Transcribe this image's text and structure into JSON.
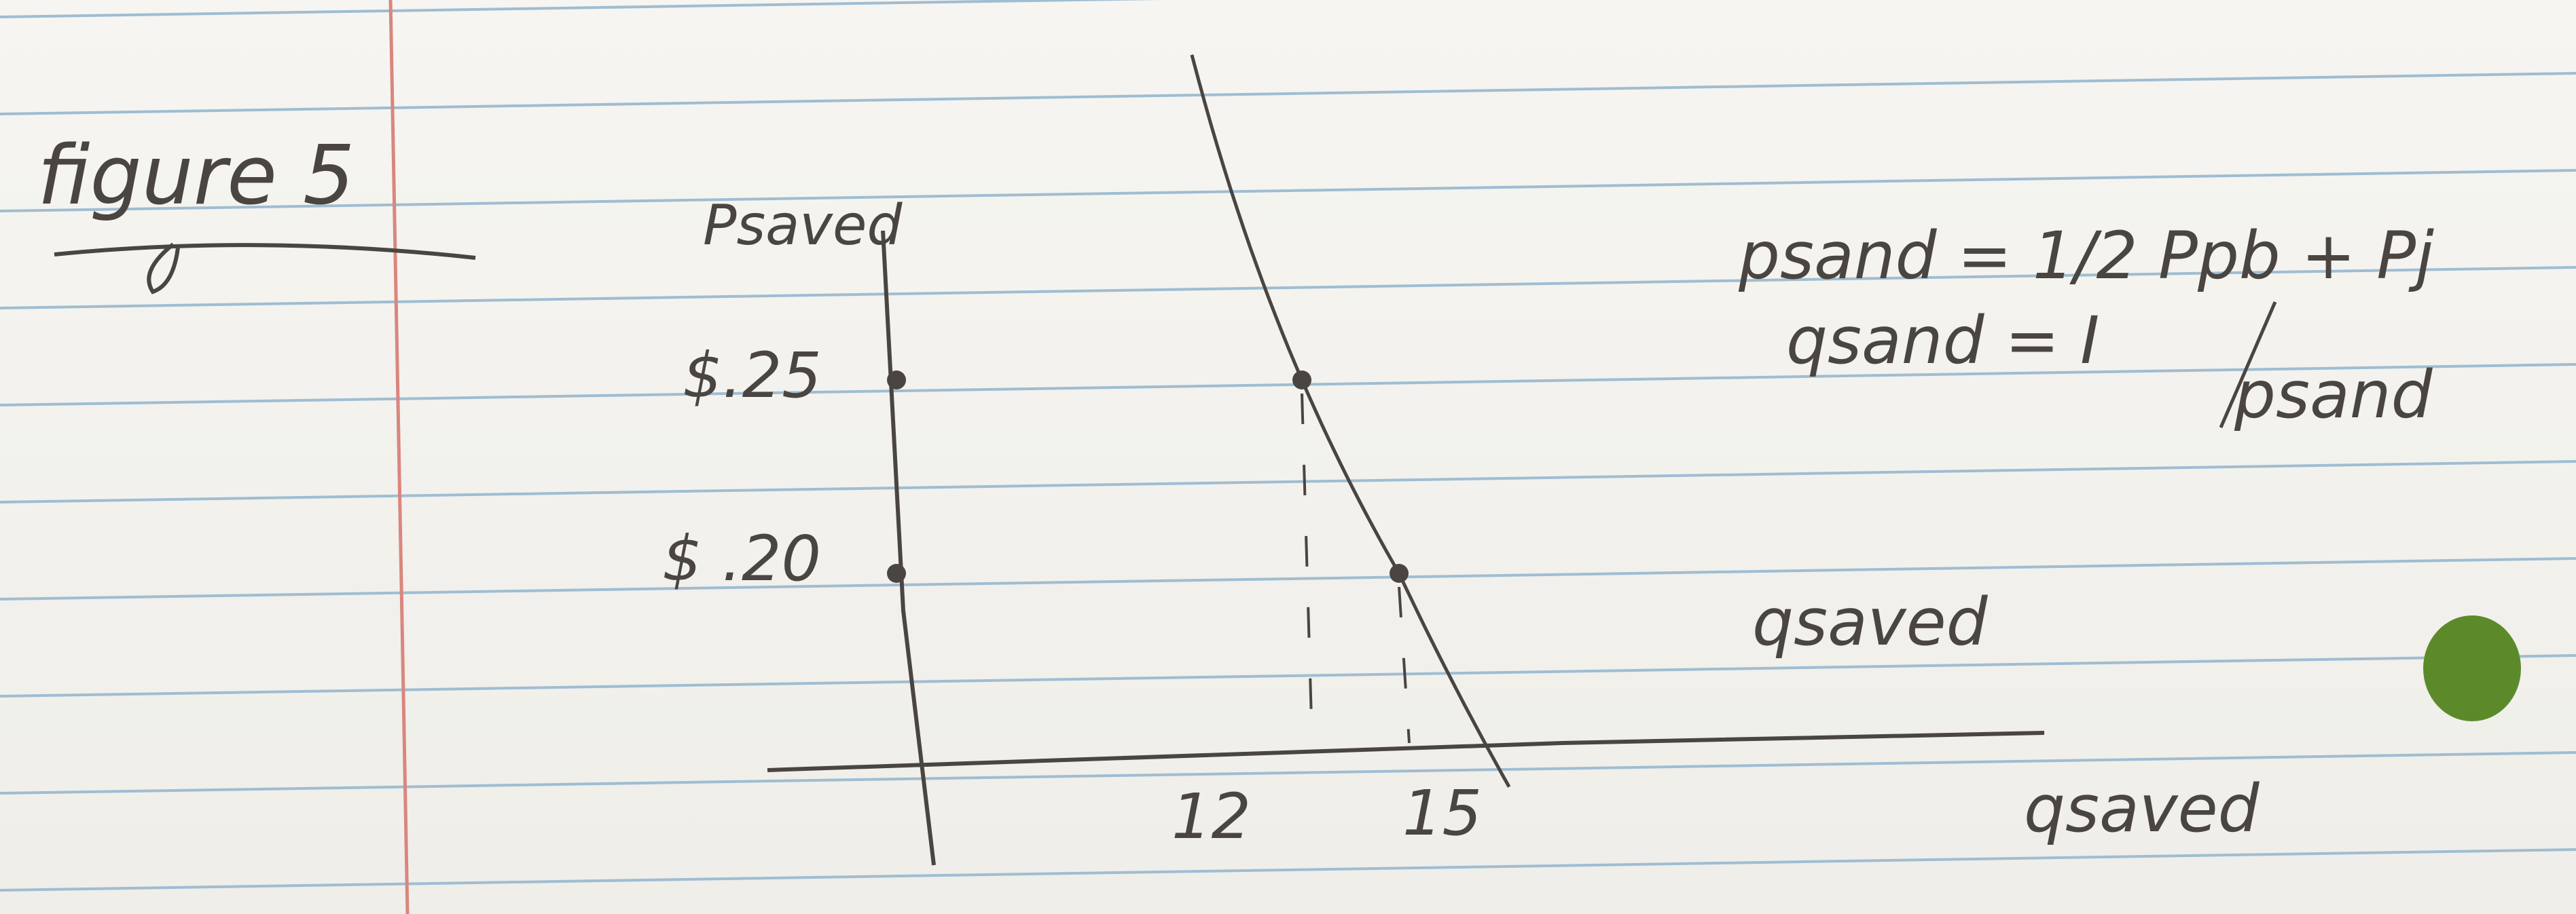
{
  "title": "figure 5",
  "chart_data": {
    "type": "line",
    "title": "figure 5",
    "ylabel": "Psaved",
    "xlabel": "qsaved",
    "curve_label": "qsaved",
    "y_ticks": [
      {
        "label": "$.25",
        "value": 0.25
      },
      {
        "label": "$ .20",
        "value": 0.2
      }
    ],
    "x_ticks": [
      {
        "label": "12",
        "value": 12
      },
      {
        "label": "15",
        "value": 15
      }
    ],
    "points": [
      {
        "x": 12,
        "y": 0.25
      },
      {
        "x": 15,
        "y": 0.2
      }
    ],
    "xlim": [
      0,
      27
    ],
    "ylim": [
      0.14,
      0.3
    ]
  },
  "equations": {
    "line1": "psand = 1/2 Ppb + Pj",
    "line2_left": "qsand = I",
    "line2_den": "psand"
  },
  "colors": {
    "ink": "#4a4540",
    "rule": "#9fbdd1",
    "margin": "#d9867e",
    "hole": "#5c8a2a"
  }
}
